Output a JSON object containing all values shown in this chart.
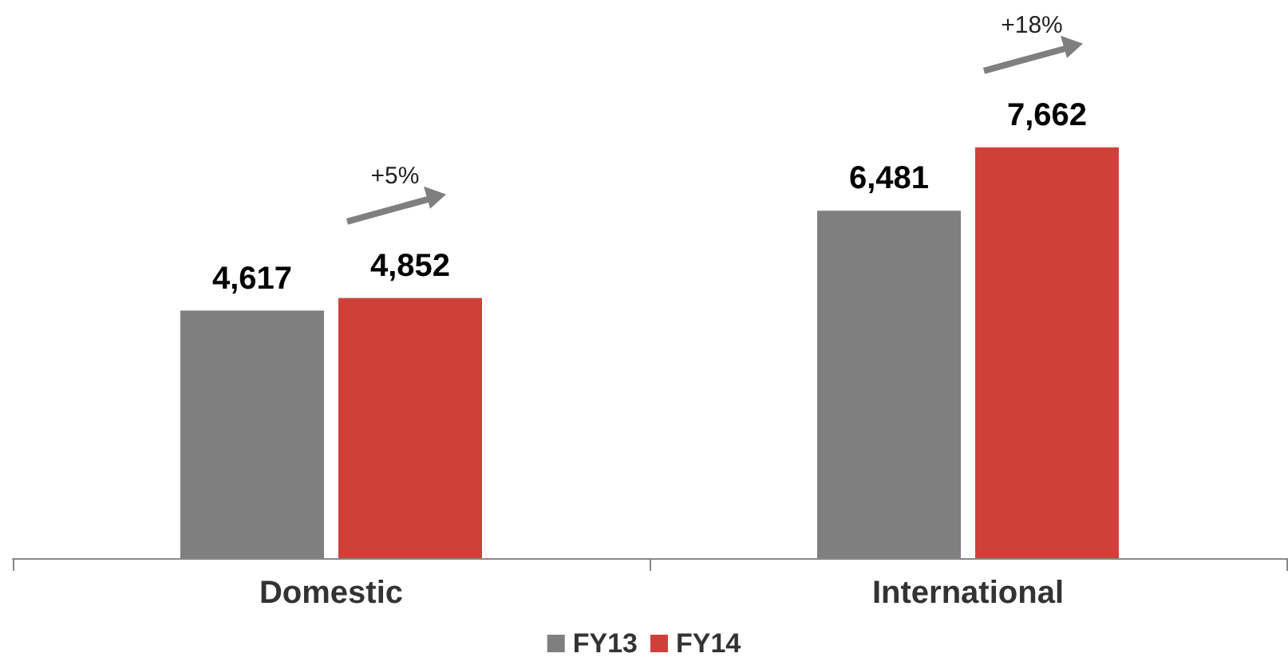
{
  "chart_data": {
    "type": "bar",
    "categories": [
      "Domestic",
      "International"
    ],
    "series": [
      {
        "name": "FY13",
        "color": "#7f7f7f",
        "values": [
          4617,
          6481
        ],
        "value_labels": [
          "4,617",
          "6,481"
        ]
      },
      {
        "name": "FY14",
        "color": "#d0403a",
        "values": [
          4852,
          7662
        ],
        "value_labels": [
          "4,852",
          "7,662"
        ]
      }
    ],
    "legend": "bottom",
    "annotations": [
      "+5%",
      "+18%"
    ]
  }
}
